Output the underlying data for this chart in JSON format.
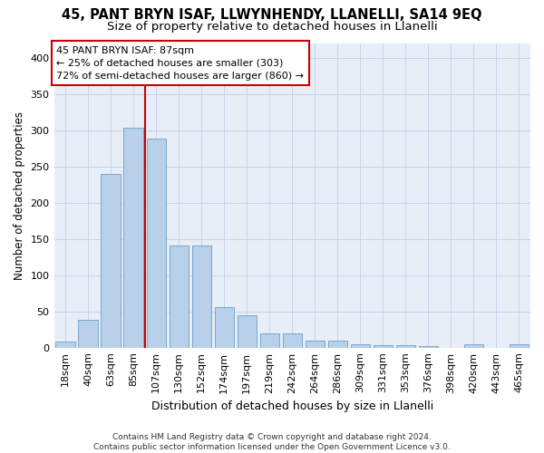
{
  "title1": "45, PANT BRYN ISAF, LLWYNHENDY, LLANELLI, SA14 9EQ",
  "title2": "Size of property relative to detached houses in Llanelli",
  "xlabel": "Distribution of detached houses by size in Llanelli",
  "ylabel": "Number of detached properties",
  "categories": [
    "18sqm",
    "40sqm",
    "63sqm",
    "85sqm",
    "107sqm",
    "130sqm",
    "152sqm",
    "174sqm",
    "197sqm",
    "219sqm",
    "242sqm",
    "264sqm",
    "286sqm",
    "309sqm",
    "331sqm",
    "353sqm",
    "376sqm",
    "398sqm",
    "420sqm",
    "443sqm",
    "465sqm"
  ],
  "values": [
    8,
    38,
    240,
    303,
    288,
    141,
    141,
    56,
    44,
    19,
    20,
    10,
    10,
    5,
    3,
    3,
    2,
    0,
    4,
    0,
    4
  ],
  "bar_color": "#b8d0ea",
  "bar_edge_color": "#6a9fc8",
  "vline_x": 3.5,
  "vline_color": "#cc0000",
  "annotation_box_text": "45 PANT BRYN ISAF: 87sqm\n← 25% of detached houses are smaller (303)\n72% of semi-detached houses are larger (860) →",
  "annotation_box_color": "#cc0000",
  "grid_color": "#c8d4e8",
  "background_color": "#e8eef8",
  "footer": "Contains HM Land Registry data © Crown copyright and database right 2024.\nContains public sector information licensed under the Open Government Licence v3.0.",
  "ylim": [
    0,
    420
  ],
  "title1_fontsize": 10.5,
  "title2_fontsize": 9.5,
  "xlabel_fontsize": 9,
  "ylabel_fontsize": 8.5,
  "tick_fontsize": 8,
  "annotation_fontsize": 8,
  "footer_fontsize": 6.5
}
